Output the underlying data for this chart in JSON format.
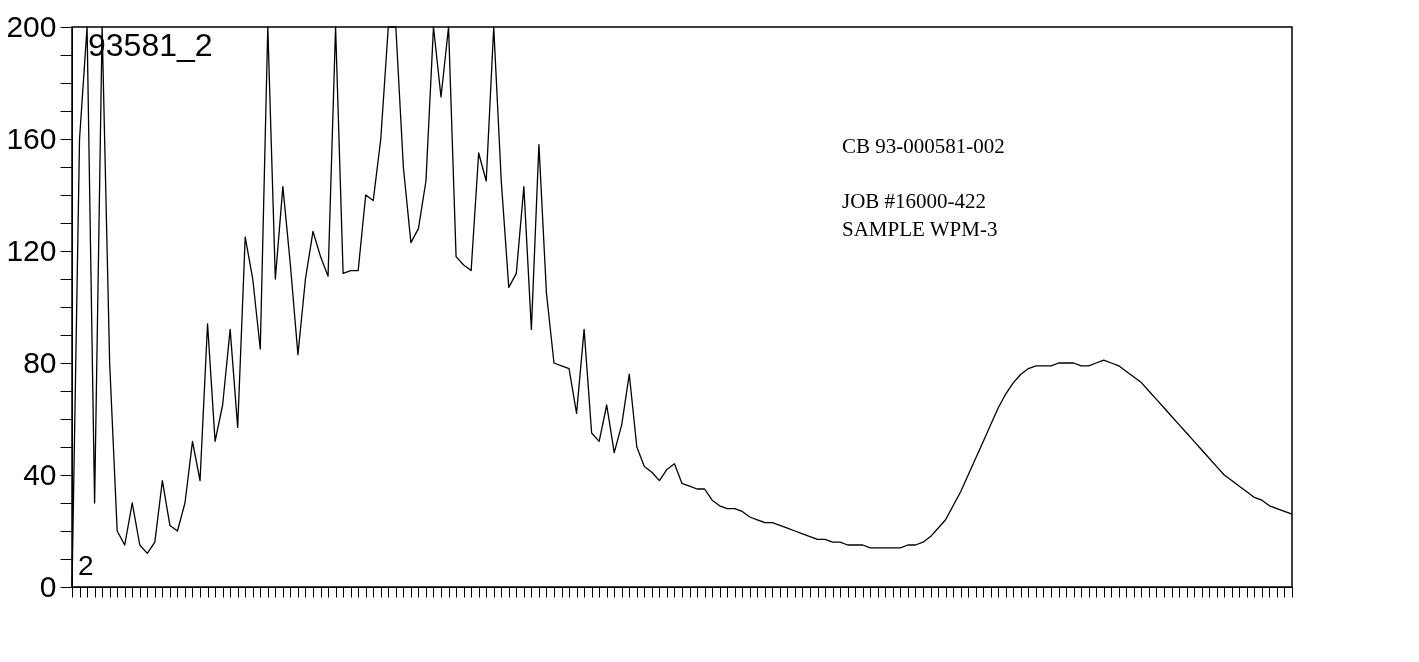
{
  "chart_data": {
    "type": "line",
    "categories": [
      null,
      null,
      null,
      null,
      null,
      null,
      null,
      null,
      null,
      null,
      null,
      null,
      null,
      null,
      null,
      null,
      null,
      null,
      null,
      null,
      null,
      null,
      null,
      null,
      null,
      null,
      null,
      null,
      null,
      null,
      null,
      null,
      null,
      null,
      null,
      null,
      null,
      null,
      null,
      null,
      null,
      null,
      null,
      null,
      null,
      null,
      null,
      null,
      null,
      null,
      null,
      null,
      null,
      null,
      null,
      null,
      null,
      null,
      null,
      null,
      null,
      null,
      null,
      null,
      null,
      null,
      null,
      null,
      null,
      null,
      null,
      null,
      null,
      null,
      null,
      null,
      null,
      null,
      null,
      null,
      null,
      null,
      null,
      null,
      null,
      null,
      null,
      null,
      null,
      null,
      null,
      null,
      null,
      null,
      null,
      null,
      null,
      null,
      null,
      null,
      null,
      null,
      null,
      null,
      null,
      null,
      null,
      null,
      null,
      null,
      null,
      null,
      null,
      null,
      null,
      null,
      null,
      null,
      null,
      null,
      null,
      null,
      null,
      null,
      null,
      null,
      null,
      null,
      null,
      null,
      null,
      null,
      null,
      null,
      null,
      null,
      null,
      null,
      null,
      null,
      null,
      null,
      null,
      null,
      null,
      null,
      null,
      null,
      null,
      null,
      null,
      null,
      null,
      null,
      null,
      null,
      null,
      null,
      null,
      null,
      null,
      null,
      null
    ],
    "series": [
      {
        "color": "#000000",
        "values": [
          0,
          160,
          200,
          30,
          200,
          80,
          20,
          15,
          30,
          15,
          12,
          16,
          38,
          22,
          20,
          30,
          52,
          38,
          94,
          52,
          65,
          92,
          57,
          125,
          110,
          85,
          200,
          110,
          143,
          115,
          83,
          110,
          127,
          118,
          111,
          200,
          112,
          113,
          113,
          140,
          138,
          160,
          200,
          200,
          150,
          123,
          128,
          145,
          200,
          175,
          200,
          118,
          115,
          113,
          155,
          145,
          200,
          145,
          107,
          112,
          143,
          92,
          158,
          105,
          80,
          79,
          78,
          62,
          92,
          55,
          52,
          65,
          48,
          58,
          76,
          50,
          43,
          41,
          38,
          42,
          44,
          37,
          36,
          35,
          35,
          31,
          29,
          28,
          28,
          27,
          25,
          24,
          23,
          23,
          22,
          21,
          20,
          19,
          18,
          17,
          17,
          16,
          16,
          15,
          15,
          15,
          14,
          14,
          14,
          14,
          14,
          15,
          15,
          16,
          18,
          21,
          24,
          29,
          34,
          40,
          46,
          52,
          58,
          64,
          69,
          73,
          76,
          78,
          79,
          79,
          79,
          80,
          80,
          80,
          79,
          79,
          80,
          81,
          80,
          79,
          77,
          75,
          73,
          70,
          67,
          64,
          61,
          58,
          55,
          52,
          49,
          46,
          43,
          40,
          38,
          36,
          34,
          32,
          31,
          29,
          28,
          27,
          26
        ]
      }
    ],
    "ylim": [
      0,
      200
    ],
    "yticks": [
      0,
      {
        "value": 10,
        "label": null
      },
      {
        "value": 20,
        "label": null
      },
      {
        "value": 30,
        "label": null
      },
      40,
      {
        "value": 50,
        "label": null
      },
      {
        "value": 60,
        "label": null
      },
      {
        "value": 70,
        "label": null
      },
      80,
      {
        "value": 90,
        "label": null
      },
      {
        "value": 100,
        "label": null
      },
      {
        "value": 110,
        "label": null
      },
      120,
      {
        "value": 130,
        "label": null
      },
      {
        "value": 140,
        "label": null
      },
      {
        "value": 150,
        "label": null
      },
      160,
      {
        "value": 170,
        "label": null
      },
      {
        "value": 180,
        "label": null
      },
      {
        "value": 190,
        "label": null
      },
      200
    ],
    "tick_labels": "y",
    "line_style": "solid",
    "annotations": [
      "93581_2",
      "CB 93-000581-002",
      "JOB #16000-422",
      "SAMPLE  WPM-3",
      "2"
    ]
  }
}
